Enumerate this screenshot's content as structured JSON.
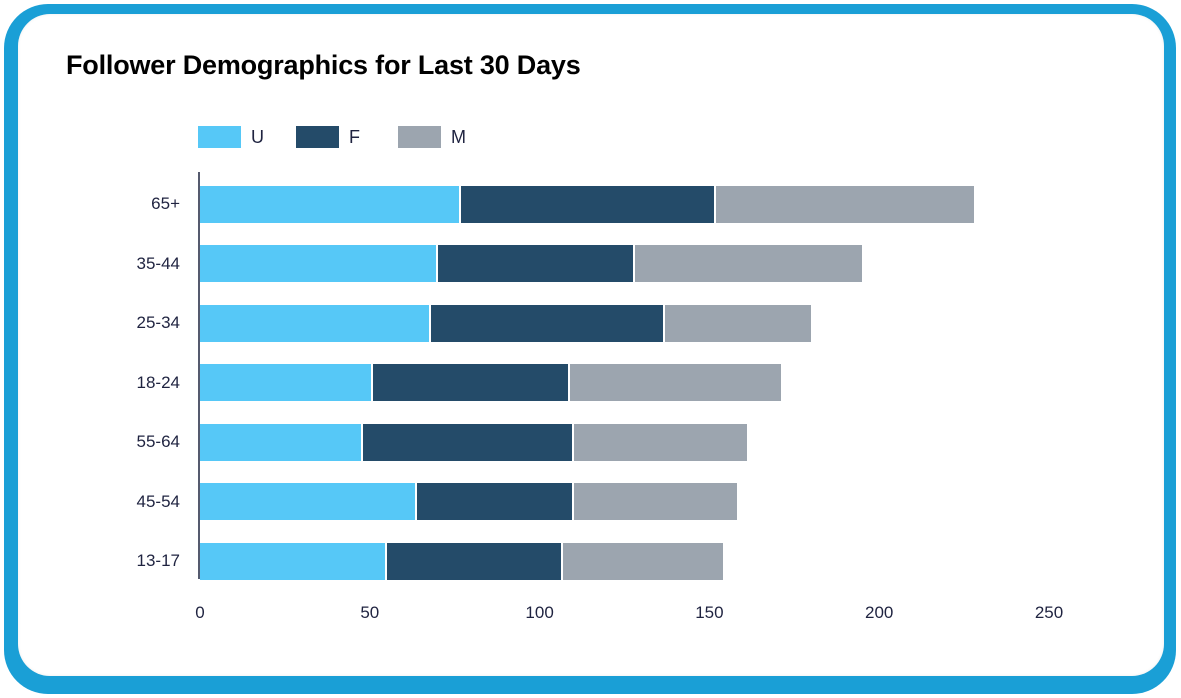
{
  "title": "Follower Demographics for Last 30 Days",
  "colors": {
    "U": "#56c8f7",
    "F": "#244b69",
    "M": "#9ca5af",
    "frame": "#1a9fd6"
  },
  "legend": [
    {
      "key": "U",
      "label": "U",
      "color": "#56c8f7"
    },
    {
      "key": "F",
      "label": "F",
      "color": "#244b69"
    },
    {
      "key": "M",
      "label": "M",
      "color": "#9ca5af"
    }
  ],
  "x_ticks": [
    "0",
    "50",
    "100",
    "150",
    "200",
    "250"
  ],
  "chart_data": {
    "type": "bar",
    "orientation": "horizontal",
    "stacked": true,
    "title": "Follower Demographics for Last 30 Days",
    "xlabel": "",
    "ylabel": "",
    "xlim": [
      0,
      250
    ],
    "x_ticks": [
      0,
      50,
      100,
      150,
      200,
      250
    ],
    "grid": false,
    "legend_position": "top-left",
    "categories": [
      "65+",
      "35-44",
      "25-34",
      "18-24",
      "55-64",
      "45-54",
      "13-17"
    ],
    "series": [
      {
        "name": "U",
        "color": "#56c8f7",
        "values": [
          77,
          70,
          68,
          51,
          48,
          64,
          55
        ]
      },
      {
        "name": "F",
        "color": "#244b69",
        "values": [
          75,
          58,
          69,
          58,
          62,
          46,
          52
        ]
      },
      {
        "name": "M",
        "color": "#9ca5af",
        "values": [
          76,
          67,
          43,
          62,
          51,
          48,
          47
        ]
      }
    ]
  }
}
